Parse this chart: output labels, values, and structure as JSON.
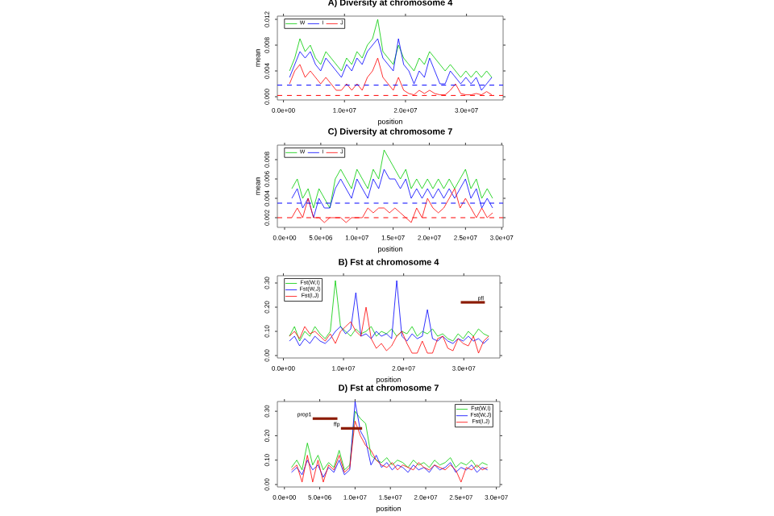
{
  "chart_data": [
    {
      "type": "line",
      "title": "A) Diversity at chromosome 4",
      "xlabel": "position",
      "ylabel": "mean",
      "legend": "top left",
      "xlim": [
        -1000000,
        36000000
      ],
      "ylim": [
        -0.0005,
        0.0125
      ],
      "xticks": [
        {
          "value": 0,
          "label": "0.0e+00"
        },
        {
          "value": 10000000,
          "label": "1.0e+07"
        },
        {
          "value": 20000000,
          "label": "2.0e+07"
        },
        {
          "value": 30000000,
          "label": "3.0e+07"
        }
      ],
      "yticks": [
        {
          "value": 0,
          "label": "0.000"
        },
        {
          "value": 0.004,
          "label": "0.004"
        },
        {
          "value": 0.008,
          "label": "0.008"
        },
        {
          "value": 0.012,
          "label": "0.012"
        }
      ],
      "x": [
        1000000,
        1850000,
        2700000,
        3550000,
        4400000,
        5250000,
        6100000,
        6950000,
        7800000,
        8650000,
        9500000,
        10350000,
        11200000,
        12050000,
        12900000,
        13750000,
        14600000,
        15450000,
        16300000,
        17150000,
        18000000,
        18850000,
        19700000,
        20550000,
        21400000,
        22250000,
        23100000,
        23950000,
        24800000,
        25650000,
        26500000,
        27350000,
        28200000,
        29050000,
        29900000,
        30750000,
        31600000,
        32450000,
        33300000,
        34150000
      ],
      "ref_lines": [
        {
          "axis": "y",
          "value": 0.0018,
          "color": "#0000ff",
          "line_style": "dashed"
        },
        {
          "axis": "y",
          "value": 0.0002,
          "color": "#ff0000",
          "line_style": "dashed"
        }
      ],
      "series": [
        {
          "name": "W",
          "color": "#00cc00",
          "values": [
            0.004,
            0.006,
            0.009,
            0.007,
            0.008,
            0.006,
            0.005,
            0.007,
            0.006,
            0.005,
            0.004,
            0.006,
            0.005,
            0.007,
            0.006,
            0.008,
            0.009,
            0.012,
            0.007,
            0.006,
            0.005,
            0.008,
            0.006,
            0.005,
            0.004,
            0.006,
            0.005,
            0.007,
            0.006,
            0.005,
            0.004,
            0.005,
            0.004,
            0.003,
            0.004,
            0.003,
            0.004,
            0.003,
            0.004,
            0.003
          ]
        },
        {
          "name": "I",
          "color": "#0000ff",
          "values": [
            0.003,
            0.005,
            0.007,
            0.006,
            0.007,
            0.005,
            0.004,
            0.006,
            0.005,
            0.004,
            0.003,
            0.005,
            0.004,
            0.006,
            0.005,
            0.007,
            0.008,
            0.009,
            0.006,
            0.005,
            0.004,
            0.009,
            0.005,
            0.004,
            0.002,
            0.004,
            0.003,
            0.006,
            0.004,
            0.002,
            0.002,
            0.004,
            0.003,
            0.002,
            0.003,
            0.002,
            0.003,
            0.001,
            0.002,
            0.003
          ]
        },
        {
          "name": "J",
          "color": "#ff0000",
          "values": [
            0.002,
            0.004,
            0.005,
            0.003,
            0.004,
            0.003,
            0.002,
            0.003,
            0.002,
            0.001,
            0.001,
            0.002,
            0.001,
            0.002,
            0.001,
            0.003,
            0.004,
            0.006,
            0.003,
            0.002,
            0.001,
            0.003,
            0.001,
            0.0005,
            0.0003,
            0.001,
            0.0005,
            0.001,
            0.0005,
            0.0003,
            0.0003,
            0.001,
            0.002,
            0.0005,
            0.0003,
            0.0003,
            0.0005,
            0.0003,
            0.0008,
            0.0003
          ]
        }
      ]
    },
    {
      "type": "line",
      "title": "C) Diversity at chromosome 7",
      "xlabel": "position",
      "ylabel": "mean",
      "legend": "top left",
      "xlim": [
        -1000000,
        30200000
      ],
      "ylim": [
        0.001,
        0.0095
      ],
      "xticks": [
        {
          "value": 0,
          "label": "0.0e+00"
        },
        {
          "value": 5000000,
          "label": "5.0e+06"
        },
        {
          "value": 10000000,
          "label": "1.0e+07"
        },
        {
          "value": 15000000,
          "label": "1.5e+07"
        },
        {
          "value": 20000000,
          "label": "2.0e+07"
        },
        {
          "value": 25000000,
          "label": "2.5e+07"
        },
        {
          "value": 30000000,
          "label": "3.0e+07"
        }
      ],
      "yticks": [
        {
          "value": 0.002,
          "label": "0.002"
        },
        {
          "value": 0.004,
          "label": "0.004"
        },
        {
          "value": 0.006,
          "label": "0.006"
        },
        {
          "value": 0.008,
          "label": "0.008"
        }
      ],
      "x": [
        1000000,
        1750000,
        2500000,
        3250000,
        4000000,
        4750000,
        5500000,
        6250000,
        7000000,
        7750000,
        8500000,
        9250000,
        10000000,
        10750000,
        11500000,
        12250000,
        13000000,
        13750000,
        14500000,
        15250000,
        16000000,
        16750000,
        17500000,
        18250000,
        19000000,
        19750000,
        20500000,
        21250000,
        22000000,
        22750000,
        23500000,
        24250000,
        25000000,
        25750000,
        26500000,
        27250000,
        28000000,
        28750000
      ],
      "ref_lines": [
        {
          "axis": "y",
          "value": 0.0035,
          "color": "#0000ff",
          "line_style": "dashed"
        },
        {
          "axis": "y",
          "value": 0.002,
          "color": "#ff0000",
          "line_style": "dashed"
        }
      ],
      "series": [
        {
          "name": "W",
          "color": "#00cc00",
          "values": [
            0.005,
            0.006,
            0.004,
            0.005,
            0.003,
            0.005,
            0.004,
            0.003,
            0.006,
            0.007,
            0.006,
            0.005,
            0.007,
            0.006,
            0.005,
            0.007,
            0.006,
            0.009,
            0.008,
            0.007,
            0.006,
            0.007,
            0.005,
            0.006,
            0.005,
            0.006,
            0.005,
            0.006,
            0.005,
            0.006,
            0.005,
            0.006,
            0.007,
            0.005,
            0.006,
            0.004,
            0.005,
            0.004
          ]
        },
        {
          "name": "I",
          "color": "#0000ff",
          "values": [
            0.004,
            0.005,
            0.003,
            0.004,
            0.002,
            0.004,
            0.003,
            0.003,
            0.005,
            0.006,
            0.005,
            0.004,
            0.006,
            0.005,
            0.004,
            0.006,
            0.005,
            0.007,
            0.006,
            0.006,
            0.005,
            0.006,
            0.004,
            0.005,
            0.004,
            0.005,
            0.004,
            0.005,
            0.004,
            0.005,
            0.004,
            0.005,
            0.006,
            0.004,
            0.005,
            0.003,
            0.004,
            0.003
          ]
        },
        {
          "name": "J",
          "color": "#ff0000",
          "values": [
            0.002,
            0.003,
            0.002,
            0.004,
            0.002,
            0.002,
            0.0015,
            0.002,
            0.002,
            0.002,
            0.0015,
            0.002,
            0.002,
            0.002,
            0.003,
            0.0025,
            0.003,
            0.003,
            0.0025,
            0.003,
            0.0025,
            0.002,
            0.0015,
            0.003,
            0.002,
            0.004,
            0.003,
            0.0025,
            0.003,
            0.004,
            0.005,
            0.003,
            0.004,
            0.003,
            0.002,
            0.003,
            0.002,
            0.0025
          ]
        }
      ]
    },
    {
      "type": "line",
      "title": "B) Fst at chromosome 4",
      "xlabel": "position",
      "legend": "top left",
      "xlim": [
        -1000000,
        36000000
      ],
      "ylim": [
        -0.01,
        0.33
      ],
      "xticks": [
        {
          "value": 0,
          "label": "0.0e+00"
        },
        {
          "value": 10000000,
          "label": "1.0e+07"
        },
        {
          "value": 20000000,
          "label": "2.0e+07"
        },
        {
          "value": 30000000,
          "label": "3.0e+07"
        }
      ],
      "yticks": [
        {
          "value": 0,
          "label": "0.00"
        },
        {
          "value": 0.1,
          "label": "0.10"
        },
        {
          "value": 0.2,
          "label": "0.20"
        },
        {
          "value": 0.3,
          "label": "0.30"
        }
      ],
      "x": [
        1000000,
        1850000,
        2700000,
        3550000,
        4400000,
        5250000,
        6100000,
        6950000,
        7800000,
        8650000,
        9500000,
        10350000,
        11200000,
        12050000,
        12900000,
        13750000,
        14600000,
        15450000,
        16300000,
        17150000,
        18000000,
        18850000,
        19700000,
        20550000,
        21400000,
        22250000,
        23100000,
        23950000,
        24800000,
        25650000,
        26500000,
        27350000,
        28200000,
        29050000,
        29900000,
        30750000,
        31600000,
        32450000,
        33300000,
        34150000
      ],
      "annotations": [
        {
          "text": "pfl",
          "x": 33500000,
          "y": 0.22
        }
      ],
      "series": [
        {
          "name": "Fst(W,I)",
          "color": "#00cc00",
          "values": [
            0.08,
            0.12,
            0.06,
            0.1,
            0.08,
            0.12,
            0.09,
            0.07,
            0.1,
            0.31,
            0.12,
            0.1,
            0.08,
            0.11,
            0.09,
            0.1,
            0.12,
            0.08,
            0.1,
            0.09,
            0.11,
            0.08,
            0.1,
            0.09,
            0.12,
            0.08,
            0.1,
            0.09,
            0.11,
            0.08,
            0.09,
            0.07,
            0.06,
            0.09,
            0.07,
            0.1,
            0.08,
            0.11,
            0.09,
            0.08
          ]
        },
        {
          "name": "Fst(W,J)",
          "color": "#0000ff",
          "values": [
            0.06,
            0.08,
            0.04,
            0.07,
            0.05,
            0.08,
            0.06,
            0.05,
            0.07,
            0.1,
            0.12,
            0.09,
            0.11,
            0.26,
            0.08,
            0.09,
            0.07,
            0.1,
            0.08,
            0.09,
            0.07,
            0.31,
            0.08,
            0.06,
            0.09,
            0.07,
            0.08,
            0.19,
            0.07,
            0.06,
            0.08,
            0.06,
            0.05,
            0.07,
            0.06,
            0.08,
            0.06,
            0.07,
            0.05,
            0.07
          ]
        },
        {
          "name": "Fst(I,J)",
          "color": "#ff0000",
          "values": [
            0.08,
            0.1,
            0.07,
            0.12,
            0.09,
            0.1,
            0.08,
            0.06,
            0.09,
            0.05,
            0.1,
            0.12,
            0.14,
            0.1,
            0.08,
            0.2,
            0.07,
            0.03,
            0.05,
            0.02,
            0.04,
            0.08,
            0.1,
            0.05,
            0.01,
            0.01,
            0.06,
            0.01,
            0.01,
            0.07,
            0.08,
            0.03,
            0.02,
            0.07,
            0.05,
            0.04,
            0.08,
            0.01,
            0.06,
            0.08
          ]
        },
        {
          "color": "#8b1a00",
          "x": [
            29500000,
            33500000
          ],
          "values": [
            0.22,
            0.22
          ]
        }
      ]
    },
    {
      "type": "line",
      "title": "D) Fst at chromosome 7",
      "xlabel": "position",
      "legend": "top right",
      "xlim": [
        -1000000,
        30500000
      ],
      "ylim": [
        -0.01,
        0.34
      ],
      "xticks": [
        {
          "value": 0,
          "label": "0.0e+00"
        },
        {
          "value": 5000000,
          "label": "5.0e+06"
        },
        {
          "value": 10000000,
          "label": "1.0e+07"
        },
        {
          "value": 15000000,
          "label": "1.5e+07"
        },
        {
          "value": 20000000,
          "label": "2.0e+07"
        },
        {
          "value": 25000000,
          "label": "2.5e+07"
        },
        {
          "value": 30000000,
          "label": "3.0e+07"
        }
      ],
      "yticks": [
        {
          "value": 0,
          "label": "0.00"
        },
        {
          "value": 0.1,
          "label": "0.10"
        },
        {
          "value": 0.2,
          "label": "0.20"
        },
        {
          "value": 0.3,
          "label": "0.30"
        }
      ],
      "x": [
        1000000,
        1750000,
        2500000,
        3250000,
        4000000,
        4750000,
        5500000,
        6250000,
        7000000,
        7750000,
        8500000,
        9250000,
        10000000,
        10750000,
        11500000,
        12250000,
        13000000,
        13750000,
        14500000,
        15250000,
        16000000,
        16750000,
        17500000,
        18250000,
        19000000,
        19750000,
        20500000,
        21250000,
        22000000,
        22750000,
        23500000,
        24250000,
        25000000,
        25750000,
        26500000,
        27250000,
        28000000,
        28750000
      ],
      "annotations": [
        {
          "text": "prop1",
          "x": 4000000,
          "y": 0.27
        },
        {
          "text": "ffp",
          "x": 8000000,
          "y": 0.23
        }
      ],
      "series": [
        {
          "name": "Fst(W,I)",
          "color": "#00cc00",
          "values": [
            0.07,
            0.1,
            0.06,
            0.17,
            0.08,
            0.12,
            0.06,
            0.09,
            0.07,
            0.14,
            0.06,
            0.08,
            0.3,
            0.27,
            0.25,
            0.12,
            0.1,
            0.09,
            0.11,
            0.08,
            0.1,
            0.09,
            0.07,
            0.1,
            0.08,
            0.09,
            0.07,
            0.1,
            0.08,
            0.09,
            0.11,
            0.07,
            0.09,
            0.08,
            0.1,
            0.07,
            0.09,
            0.08
          ]
        },
        {
          "name": "Fst(W,J)",
          "color": "#0000ff",
          "values": [
            0.05,
            0.07,
            0.04,
            0.1,
            0.06,
            0.08,
            0.03,
            0.07,
            0.05,
            0.1,
            0.04,
            0.06,
            0.34,
            0.22,
            0.18,
            0.08,
            0.12,
            0.07,
            0.09,
            0.06,
            0.08,
            0.07,
            0.05,
            0.08,
            0.06,
            0.07,
            0.05,
            0.08,
            0.06,
            0.07,
            0.09,
            0.05,
            0.07,
            0.06,
            0.08,
            0.05,
            0.07,
            0.06
          ]
        },
        {
          "name": "Fst(I,J)",
          "color": "#ff0000",
          "values": [
            0.06,
            0.08,
            0.01,
            0.12,
            0.01,
            0.1,
            0.01,
            0.08,
            0.06,
            0.12,
            0.05,
            0.07,
            0.26,
            0.2,
            0.16,
            0.14,
            0.1,
            0.08,
            0.07,
            0.09,
            0.06,
            0.08,
            0.07,
            0.06,
            0.09,
            0.07,
            0.06,
            0.08,
            0.07,
            0.06,
            0.08,
            0.06,
            0.01,
            0.07,
            0.06,
            0.08,
            0.06,
            0.07
          ]
        },
        {
          "color": "#8b1a00",
          "x": [
            4000000,
            7500000
          ],
          "values": [
            0.27,
            0.27
          ]
        },
        {
          "color": "#8b1a00",
          "x": [
            8000000,
            11000000
          ],
          "values": [
            0.23,
            0.23
          ]
        }
      ]
    }
  ]
}
